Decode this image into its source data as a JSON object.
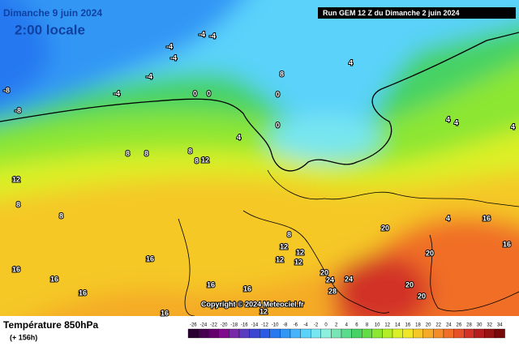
{
  "header": {
    "date": "Dimanche 9 juin 2024",
    "time": "2:00 locale",
    "run": "Run GEM 12 Z du Dimanche 2 juin 2024"
  },
  "footer": {
    "title": "Température 850hPa",
    "lead": "(+ 156h)",
    "copyright": "Copyright © 2024 Meteociel.fr"
  },
  "scale": {
    "labels": [
      "-26",
      "-24",
      "-22",
      "-20",
      "-18",
      "-16",
      "-14",
      "-12",
      "-10",
      "-8",
      "-6",
      "-4",
      "-2",
      "0",
      "2",
      "4",
      "6",
      "8",
      "10",
      "12",
      "14",
      "16",
      "18",
      "20",
      "22",
      "24",
      "26",
      "28",
      "30",
      "32",
      "34"
    ],
    "colors": [
      "#2a0032",
      "#460050",
      "#64006e",
      "#820a8c",
      "#7a2aa8",
      "#5a3cc0",
      "#3c46d2",
      "#2a5ae6",
      "#2878f0",
      "#3296f5",
      "#46b4fa",
      "#5ad2fa",
      "#78e6f0",
      "#8cf0dc",
      "#78e6b4",
      "#5adc8c",
      "#46d264",
      "#64dc46",
      "#8ce632",
      "#b4ee28",
      "#dcf028",
      "#f0e628",
      "#f5c828",
      "#f5aa28",
      "#f58c28",
      "#f06e28",
      "#e65028",
      "#d23228",
      "#b41e1e",
      "#961414",
      "#780a0a"
    ]
  },
  "map_labels": [
    "-8",
    "-8",
    "-4",
    "-4",
    "-4",
    "-4",
    "-4",
    "-4",
    "0",
    "0",
    "0",
    "0",
    "4",
    "4",
    "4",
    "4",
    "4",
    "8",
    "8",
    "8",
    "8",
    "8",
    "8",
    "8",
    "12",
    "12",
    "12",
    "12",
    "12",
    "12",
    "16",
    "16",
    "16",
    "16",
    "16",
    "16",
    "16",
    "16",
    "20",
    "20",
    "20",
    "20",
    "20",
    "24",
    "24",
    "28",
    "4",
    "8",
    "16",
    "12"
  ]
}
